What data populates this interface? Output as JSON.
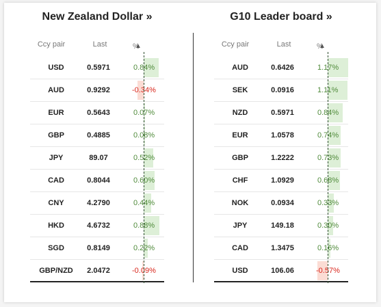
{
  "left_panel": {
    "title": "New Zealand Dollar »",
    "headers": {
      "ccy": "Ccy pair",
      "last": "Last",
      "pct": "%",
      "sort_icon": "sort-up-arrow-icon"
    },
    "rows": [
      {
        "ccy": "USD",
        "last": "0.5971",
        "pct": "0.84%",
        "value": 0.84
      },
      {
        "ccy": "AUD",
        "last": "0.9292",
        "pct": "-0.34%",
        "value": -0.34
      },
      {
        "ccy": "EUR",
        "last": "0.5643",
        "pct": "0.07%",
        "value": 0.07
      },
      {
        "ccy": "GBP",
        "last": "0.4885",
        "pct": "0.08%",
        "value": 0.08
      },
      {
        "ccy": "JPY",
        "last": "89.07",
        "pct": "0.52%",
        "value": 0.52
      },
      {
        "ccy": "CAD",
        "last": "0.8044",
        "pct": "0.60%",
        "value": 0.6
      },
      {
        "ccy": "CNY",
        "last": "4.2790",
        "pct": "0.44%",
        "value": 0.44
      },
      {
        "ccy": "HKD",
        "last": "4.6732",
        "pct": "0.88%",
        "value": 0.88
      },
      {
        "ccy": "SGD",
        "last": "0.8149",
        "pct": "0.22%",
        "value": 0.22
      },
      {
        "ccy": "GBP/NZD",
        "last": "2.0472",
        "pct": "-0.09%",
        "value": -0.09
      }
    ]
  },
  "right_panel": {
    "title": "G10 Leader board »",
    "headers": {
      "ccy": "Ccy pair",
      "last": "Last",
      "pct": "%",
      "sort_icon": "sort-up-arrow-icon"
    },
    "rows": [
      {
        "ccy": "AUD",
        "last": "0.6426",
        "pct": "1.17%",
        "value": 1.17
      },
      {
        "ccy": "SEK",
        "last": "0.0916",
        "pct": "1.11%",
        "value": 1.11
      },
      {
        "ccy": "NZD",
        "last": "0.5971",
        "pct": "0.84%",
        "value": 0.84
      },
      {
        "ccy": "EUR",
        "last": "1.0578",
        "pct": "0.74%",
        "value": 0.74
      },
      {
        "ccy": "GBP",
        "last": "1.2222",
        "pct": "0.73%",
        "value": 0.73
      },
      {
        "ccy": "CHF",
        "last": "1.0929",
        "pct": "0.68%",
        "value": 0.68
      },
      {
        "ccy": "NOK",
        "last": "0.0934",
        "pct": "0.33%",
        "value": 0.33
      },
      {
        "ccy": "JPY",
        "last": "149.18",
        "pct": "0.30%",
        "value": 0.3
      },
      {
        "ccy": "CAD",
        "last": "1.3475",
        "pct": "0.16%",
        "value": 0.16
      },
      {
        "ccy": "USD",
        "last": "106.06",
        "pct": "-0.57%",
        "value": -0.57
      }
    ]
  },
  "colors": {
    "positive_bar": "#ddefd7",
    "negative_bar": "#fbdcd4",
    "positive_text": "#4f8a3a",
    "negative_text": "#d9261c"
  }
}
